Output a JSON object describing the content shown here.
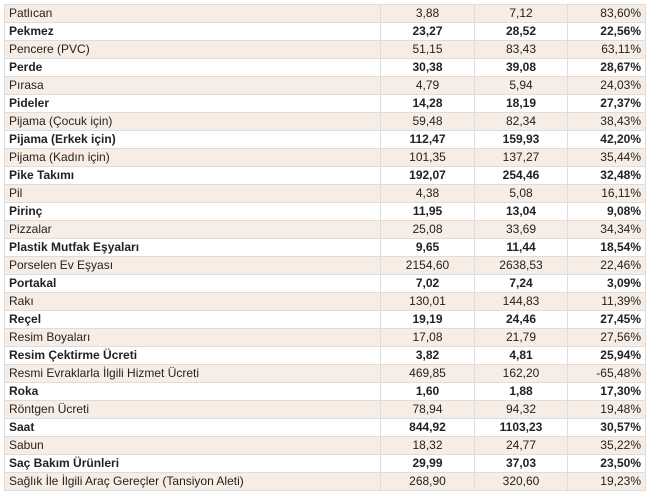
{
  "rows": [
    {
      "name": "Patlıcan",
      "v1": "3,88",
      "v2": "7,12",
      "pct": "83,60%",
      "bold": false
    },
    {
      "name": "Pekmez",
      "v1": "23,27",
      "v2": "28,52",
      "pct": "22,56%",
      "bold": true
    },
    {
      "name": "Pencere (PVC)",
      "v1": "51,15",
      "v2": "83,43",
      "pct": "63,11%",
      "bold": false
    },
    {
      "name": "Perde",
      "v1": "30,38",
      "v2": "39,08",
      "pct": "28,67%",
      "bold": true
    },
    {
      "name": "Pırasa",
      "v1": "4,79",
      "v2": "5,94",
      "pct": "24,03%",
      "bold": false
    },
    {
      "name": "Pideler",
      "v1": "14,28",
      "v2": "18,19",
      "pct": "27,37%",
      "bold": true
    },
    {
      "name": "Pijama (Çocuk için)",
      "v1": "59,48",
      "v2": "82,34",
      "pct": "38,43%",
      "bold": false
    },
    {
      "name": "Pijama (Erkek için)",
      "v1": "112,47",
      "v2": "159,93",
      "pct": "42,20%",
      "bold": true
    },
    {
      "name": "Pijama (Kadın için)",
      "v1": "101,35",
      "v2": "137,27",
      "pct": "35,44%",
      "bold": false
    },
    {
      "name": "Pike Takımı",
      "v1": "192,07",
      "v2": "254,46",
      "pct": "32,48%",
      "bold": true
    },
    {
      "name": "Pil",
      "v1": "4,38",
      "v2": "5,08",
      "pct": "16,11%",
      "bold": false
    },
    {
      "name": "Pirinç",
      "v1": "11,95",
      "v2": "13,04",
      "pct": "9,08%",
      "bold": true
    },
    {
      "name": "Pizzalar",
      "v1": "25,08",
      "v2": "33,69",
      "pct": "34,34%",
      "bold": false
    },
    {
      "name": "Plastik Mutfak Eşyaları",
      "v1": "9,65",
      "v2": "11,44",
      "pct": "18,54%",
      "bold": true
    },
    {
      "name": "Porselen Ev Eşyası",
      "v1": "2154,60",
      "v2": "2638,53",
      "pct": "22,46%",
      "bold": false
    },
    {
      "name": "Portakal",
      "v1": "7,02",
      "v2": "7,24",
      "pct": "3,09%",
      "bold": true
    },
    {
      "name": "Rakı",
      "v1": "130,01",
      "v2": "144,83",
      "pct": "11,39%",
      "bold": false
    },
    {
      "name": "Reçel",
      "v1": "19,19",
      "v2": "24,46",
      "pct": "27,45%",
      "bold": true
    },
    {
      "name": "Resim Boyaları",
      "v1": "17,08",
      "v2": "21,79",
      "pct": "27,56%",
      "bold": false
    },
    {
      "name": "Resim Çektirme Ücreti",
      "v1": "3,82",
      "v2": "4,81",
      "pct": "25,94%",
      "bold": true
    },
    {
      "name": "Resmi Evraklarla İlgili Hizmet Ücreti",
      "v1": "469,85",
      "v2": "162,20",
      "pct": "-65,48%",
      "bold": false
    },
    {
      "name": "Roka",
      "v1": "1,60",
      "v2": "1,88",
      "pct": "17,30%",
      "bold": true
    },
    {
      "name": "Röntgen Ücreti",
      "v1": "78,94",
      "v2": "94,32",
      "pct": "19,48%",
      "bold": false
    },
    {
      "name": "Saat",
      "v1": "844,92",
      "v2": "1103,23",
      "pct": "30,57%",
      "bold": true
    },
    {
      "name": "Sabun",
      "v1": "18,32",
      "v2": "24,77",
      "pct": "35,22%",
      "bold": false
    },
    {
      "name": "Saç Bakım Ürünleri",
      "v1": "29,99",
      "v2": "37,03",
      "pct": "23,50%",
      "bold": true
    },
    {
      "name": "Sağlık İle İlgili Araç Gereçler (Tansiyon Aleti)",
      "v1": "268,90",
      "v2": "320,60",
      "pct": "19,23%",
      "bold": false
    }
  ]
}
